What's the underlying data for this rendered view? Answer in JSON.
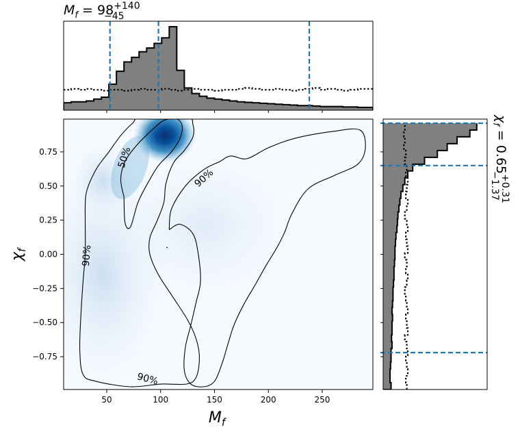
{
  "chart_data": [
    {
      "name": "marginal-top",
      "type": "histogram",
      "title": {
        "base": "M",
        "sub": "f",
        "eq": " = 98",
        "sup": "+140",
        "inf": "−45"
      },
      "xlim": [
        10,
        297
      ],
      "quantile_lines": [
        53,
        98,
        238
      ],
      "bin_edges": [
        10,
        17,
        24,
        31,
        38,
        45,
        52,
        59,
        66,
        73,
        80,
        87,
        94,
        101,
        108,
        115,
        122,
        129,
        136,
        143,
        150,
        157,
        164,
        171,
        178,
        185,
        192,
        199,
        206,
        213,
        220,
        227,
        234,
        241,
        248,
        255,
        262,
        269,
        276,
        283,
        290,
        297
      ],
      "posterior_density": [
        0.08,
        0.09,
        0.09,
        0.1,
        0.12,
        0.14,
        0.28,
        0.42,
        0.52,
        0.57,
        0.63,
        0.67,
        0.72,
        0.78,
        0.9,
        0.43,
        0.24,
        0.18,
        0.15,
        0.13,
        0.12,
        0.11,
        0.1,
        0.09,
        0.085,
        0.08,
        0.075,
        0.07,
        0.065,
        0.06,
        0.055,
        0.05,
        0.05,
        0.045,
        0.04,
        0.04,
        0.04,
        0.035,
        0.035,
        0.03,
        0.03
      ],
      "prior_density": [
        0.22,
        0.23,
        0.22,
        0.23,
        0.22,
        0.21,
        0.22,
        0.22,
        0.21,
        0.22,
        0.23,
        0.22,
        0.22,
        0.23,
        0.22,
        0.21,
        0.22,
        0.23,
        0.22,
        0.22,
        0.21,
        0.22,
        0.22,
        0.23,
        0.24,
        0.23,
        0.22,
        0.22,
        0.23,
        0.22,
        0.21,
        0.22,
        0.23,
        0.24,
        0.22,
        0.23,
        0.22,
        0.21,
        0.22,
        0.23,
        0.23
      ]
    },
    {
      "name": "joint-2d",
      "type": "heatmap",
      "xlabel": {
        "base": "χ",
        "sub": "f"
      },
      "ylabel_note": "",
      "xaxis_label": {
        "base": "M",
        "sub": "f"
      },
      "yaxis_label": {
        "base": "χ",
        "sub": "f"
      },
      "xlim": [
        10,
        297
      ],
      "ylim": [
        -0.99,
        0.99
      ],
      "xticks": [
        50,
        100,
        150,
        200,
        250
      ],
      "yticks": [
        -0.75,
        -0.5,
        -0.25,
        0.0,
        0.25,
        0.5,
        0.75
      ],
      "ytick_labels": [
        "−0.75",
        "−0.50",
        "−0.25",
        "0.00",
        "0.25",
        "0.50",
        "0.75"
      ],
      "density_peak": {
        "x": 104,
        "y": 0.87
      },
      "contours": [
        {
          "level": "50%",
          "points": [
            [
              66,
              0.42
            ],
            [
              63,
              0.55
            ],
            [
              67,
              0.68
            ],
            [
              78,
              0.8
            ],
            [
              92,
              0.91
            ],
            [
              103,
              0.98
            ],
            [
              115,
              0.99
            ],
            [
              120,
              0.94
            ],
            [
              118,
              0.85
            ],
            [
              110,
              0.75
            ],
            [
              98,
              0.65
            ],
            [
              88,
              0.52
            ],
            [
              79,
              0.38
            ],
            [
              72,
              0.2
            ],
            [
              67,
              0.23
            ],
            [
              66,
              0.42
            ]
          ]
        },
        {
          "level": "90%",
          "points": [
            [
              30,
              0.25
            ],
            [
              31,
              0.45
            ],
            [
              40,
              0.62
            ],
            [
              52,
              0.75
            ],
            [
              63,
              0.87
            ],
            [
              74,
              0.96
            ],
            [
              82,
              1.0
            ],
            [
              124,
              1.0
            ],
            [
              130,
              0.95
            ],
            [
              130,
              0.86
            ],
            [
              122,
              0.76
            ],
            [
              112,
              0.67
            ],
            [
              105,
              0.52
            ],
            [
              103,
              0.38
            ],
            [
              97,
              0.25
            ],
            [
              90,
              0.12
            ],
            [
              90,
              0.0
            ],
            [
              98,
              -0.15
            ],
            [
              112,
              -0.32
            ],
            [
              125,
              -0.48
            ],
            [
              133,
              -0.62
            ],
            [
              136,
              -0.76
            ],
            [
              133,
              -0.9
            ],
            [
              124,
              -0.95
            ],
            [
              100,
              -0.95
            ],
            [
              72,
              -0.97
            ],
            [
              40,
              -0.93
            ],
            [
              28,
              -0.88
            ],
            [
              25,
              -0.7
            ],
            [
              26,
              -0.45
            ],
            [
              28,
              -0.2
            ],
            [
              30,
              0.0
            ],
            [
              30,
              0.25
            ]
          ]
        },
        {
          "level": "90%",
          "points": [
            [
              108,
              0.18
            ],
            [
              110,
              0.33
            ],
            [
              123,
              0.5
            ],
            [
              140,
              0.62
            ],
            [
              155,
              0.68
            ],
            [
              165,
              0.72
            ],
            [
              180,
              0.7
            ],
            [
              200,
              0.78
            ],
            [
              225,
              0.85
            ],
            [
              260,
              0.9
            ],
            [
              285,
              0.91
            ],
            [
              290,
              0.78
            ],
            [
              283,
              0.66
            ],
            [
              262,
              0.58
            ],
            [
              237,
              0.48
            ],
            [
              222,
              0.3
            ],
            [
              215,
              0.16
            ],
            [
              208,
              0.05
            ],
            [
              198,
              -0.08
            ],
            [
              188,
              -0.22
            ],
            [
              177,
              -0.37
            ],
            [
              168,
              -0.52
            ],
            [
              162,
              -0.67
            ],
            [
              157,
              -0.8
            ],
            [
              150,
              -0.93
            ],
            [
              140,
              -0.97
            ],
            [
              128,
              -0.95
            ],
            [
              122,
              -0.85
            ],
            [
              123,
              -0.68
            ],
            [
              128,
              -0.52
            ],
            [
              133,
              -0.35
            ],
            [
              137,
              -0.2
            ],
            [
              135,
              0.0
            ],
            [
              130,
              0.15
            ],
            [
              118,
              0.22
            ],
            [
              108,
              0.18
            ]
          ]
        }
      ],
      "contour_labels": [
        {
          "text": "50%",
          "x": 66,
          "y": 0.71,
          "angle": -72
        },
        {
          "text": "90%",
          "x": 140,
          "y": 0.56,
          "angle": -42
        },
        {
          "text": "90%",
          "x": 31,
          "y": -0.01,
          "angle": -85
        },
        {
          "text": "90%",
          "x": 88,
          "y": -0.91,
          "angle": 15
        }
      ]
    },
    {
      "name": "marginal-right",
      "type": "histogram",
      "orientation": "horizontal",
      "side_label": {
        "base": "χ",
        "sub": "f",
        "eq": " = 0.65",
        "sup": "+0.31",
        "inf": "−1.37"
      },
      "ylim": [
        -0.99,
        0.99
      ],
      "quantile_lines": [
        -0.72,
        0.65,
        0.96
      ],
      "bin_edges": [
        -0.99,
        -0.94,
        -0.89,
        -0.84,
        -0.79,
        -0.74,
        -0.69,
        -0.64,
        -0.59,
        -0.54,
        -0.49,
        -0.44,
        -0.39,
        -0.34,
        -0.29,
        -0.24,
        -0.19,
        -0.14,
        -0.09,
        -0.04,
        0.01,
        0.06,
        0.11,
        0.16,
        0.21,
        0.26,
        0.31,
        0.36,
        0.41,
        0.46,
        0.51,
        0.56,
        0.61,
        0.66,
        0.71,
        0.76,
        0.81,
        0.86,
        0.91,
        0.96
      ],
      "posterior_density": [
        0.08,
        0.07,
        0.07,
        0.075,
        0.08,
        0.08,
        0.09,
        0.085,
        0.09,
        0.09,
        0.095,
        0.09,
        0.095,
        0.1,
        0.1,
        0.105,
        0.11,
        0.11,
        0.115,
        0.12,
        0.12,
        0.125,
        0.13,
        0.14,
        0.145,
        0.15,
        0.16,
        0.17,
        0.18,
        0.2,
        0.22,
        0.25,
        0.3,
        0.42,
        0.55,
        0.65,
        0.75,
        0.88,
        0.95
      ],
      "prior_density": [
        0.24,
        0.23,
        0.25,
        0.24,
        0.23,
        0.25,
        0.24,
        0.22,
        0.25,
        0.24,
        0.23,
        0.25,
        0.24,
        0.23,
        0.22,
        0.24,
        0.25,
        0.23,
        0.24,
        0.22,
        0.25,
        0.24,
        0.23,
        0.25,
        0.24,
        0.22,
        0.24,
        0.25,
        0.23,
        0.24,
        0.25,
        0.23,
        0.24,
        0.22,
        0.23,
        0.21,
        0.22,
        0.21,
        0.22
      ]
    }
  ],
  "colors": {
    "hist_fill": "#808080",
    "quantile_line": "#1f77b4",
    "density_max": "#08306b",
    "density_mid": "#2171b5",
    "density_low": "#f7fbff"
  }
}
